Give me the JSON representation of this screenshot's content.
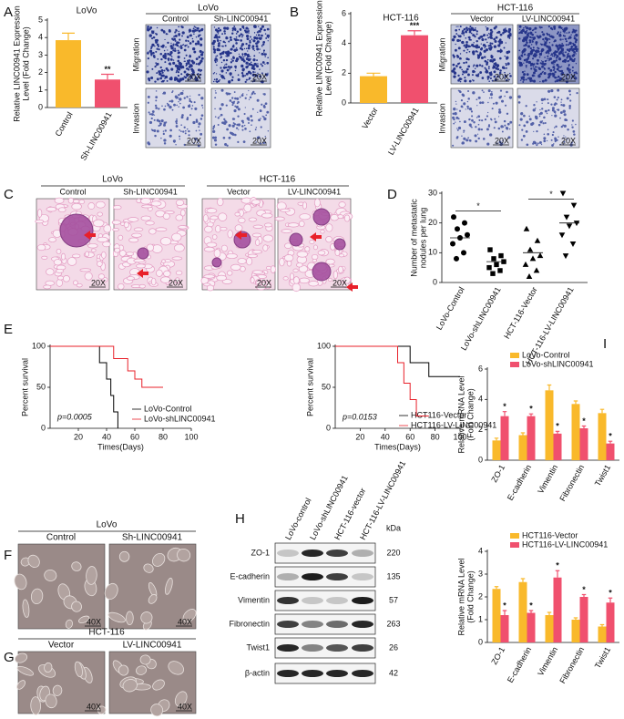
{
  "panels": [
    "A",
    "B",
    "C",
    "D",
    "E",
    "F",
    "G",
    "H",
    "I"
  ],
  "micrographs": {
    "A": {
      "title": "LoVo",
      "columns": [
        "Control",
        "Sh-LINC00941"
      ],
      "rows": [
        "Migration",
        "Invasion"
      ],
      "magnification": "20X"
    },
    "B": {
      "title": "HCT-116",
      "columns": [
        "Vector",
        "LV-LINC00941"
      ],
      "rows": [
        "Migration",
        "Invasion"
      ],
      "magnification": "20X"
    },
    "C": {
      "groups": [
        {
          "title": "LoVo",
          "columns": [
            "Control",
            "Sh-LINC00941"
          ]
        },
        {
          "title": "HCT-116",
          "columns": [
            "Vector",
            "LV-LINC00941"
          ]
        }
      ],
      "magnification": "20X"
    },
    "F": {
      "title": "LoVo",
      "columns": [
        "Control",
        "Sh-LINC00941"
      ],
      "magnification": "40X"
    },
    "G": {
      "title": "HCT-116",
      "columns": [
        "Vector",
        "LV-LINC00941"
      ],
      "magnification": "40X"
    }
  },
  "blot": {
    "lanes": [
      "LoVo-control",
      "LoVo-shLINC00941",
      "HCT-116-vector",
      "HCT-116-LV-LINC00941"
    ],
    "proteins": [
      "ZO-1",
      "E-cadherin",
      "Vimentin",
      "Fibronectin",
      "Twist1",
      "β-actin"
    ],
    "unit": "kDa",
    "kda": [
      220,
      135,
      57,
      263,
      26,
      42
    ]
  },
  "chart_data": [
    {
      "type": "bar",
      "title": "LoVo",
      "ylabel": [
        "Relative LINC00941 Expression",
        "Level (Fold Change)"
      ],
      "categories": [
        "Control",
        "Sh-LINC00941"
      ],
      "values": [
        3.85,
        1.6
      ],
      "errors": [
        0.4,
        0.3
      ],
      "colors": [
        "#f9b92b",
        "#f0506e"
      ],
      "ylim": [
        0,
        5
      ],
      "yticks": [
        0,
        1,
        2,
        3,
        4,
        5
      ],
      "annotations": [
        {
          "index": 1,
          "text": "**"
        }
      ]
    },
    {
      "type": "bar",
      "title": "HCT-116",
      "ylabel": [
        "Relative LINC00941 Expression",
        "Level (Fold Change)"
      ],
      "categories": [
        "Vector",
        "LV-LINC00941"
      ],
      "values": [
        1.8,
        4.55
      ],
      "errors": [
        0.2,
        0.3
      ],
      "colors": [
        "#f9b92b",
        "#f0506e"
      ],
      "ylim": [
        0,
        6
      ],
      "yticks": [
        0,
        2,
        4,
        6
      ],
      "annotations": [
        {
          "index": 1,
          "text": "***"
        }
      ]
    },
    {
      "type": "dot",
      "ylabel": [
        "Number of metastatic",
        "nodules per lung"
      ],
      "categories": [
        "LoVo-Control",
        "LoVo-shLINC00941",
        "HCT-116-Vector",
        "HCT-116-LV-LINC00941"
      ],
      "values": [
        [
          22,
          20,
          18,
          16,
          15,
          13,
          10,
          8
        ],
        [
          11,
          9,
          8,
          7,
          6,
          5,
          4,
          3
        ],
        [
          18,
          14,
          11,
          9,
          8,
          6,
          4,
          2
        ],
        [
          30,
          26,
          22,
          20,
          19,
          16,
          13,
          9
        ]
      ],
      "means": [
        15,
        7,
        10,
        20
      ],
      "markers": [
        "circle",
        "square",
        "triangle",
        "triangle-down"
      ],
      "ylim": [
        0,
        30
      ],
      "yticks": [
        0,
        10,
        20,
        30
      ],
      "significance": [
        {
          "from": 0,
          "to": 1,
          "y": 24,
          "text": "*"
        },
        {
          "from": 2,
          "to": 3,
          "y": 28,
          "text": "*"
        }
      ]
    },
    {
      "type": "survival",
      "xlabel": "Times(Days)",
      "ylabel": "Percent survival",
      "annotation": "p=0.0005",
      "xlim": [
        0,
        100
      ],
      "xticks": [
        20,
        40,
        60,
        80,
        100
      ],
      "ylim": [
        0,
        100
      ],
      "yticks": [
        0,
        50,
        100
      ],
      "series": [
        {
          "name": "LoVo-Control",
          "color": "#000000",
          "x": [
            0,
            35,
            35,
            40,
            40,
            43,
            43,
            45,
            45,
            48,
            48
          ],
          "values": [
            100,
            100,
            80,
            80,
            60,
            60,
            40,
            40,
            20,
            20,
            0
          ]
        },
        {
          "name": "LoVo-shLINC00941",
          "color": "#e8202a",
          "x": [
            0,
            45,
            45,
            55,
            55,
            60,
            60,
            65,
            65,
            80
          ],
          "values": [
            100,
            100,
            85,
            85,
            70,
            70,
            60,
            60,
            50,
            50
          ]
        }
      ]
    },
    {
      "type": "survival",
      "xlabel": "Times(Days)",
      "ylabel": "Percent survival",
      "annotation": "p=0.0153",
      "xlim": [
        0,
        100
      ],
      "xticks": [
        20,
        40,
        60,
        80,
        100
      ],
      "ylim": [
        0,
        100
      ],
      "yticks": [
        0,
        50,
        100
      ],
      "series": [
        {
          "name": "HCT116-Vector",
          "color": "#000000",
          "x": [
            0,
            60,
            60,
            75,
            75,
            100
          ],
          "values": [
            100,
            100,
            80,
            80,
            63,
            63
          ]
        },
        {
          "name": "HCT116-LV-LINC00941",
          "color": "#e8202a",
          "x": [
            0,
            50,
            50,
            55,
            55,
            60,
            60,
            65,
            65,
            75
          ],
          "values": [
            100,
            100,
            80,
            80,
            55,
            55,
            35,
            35,
            15,
            15
          ]
        }
      ]
    },
    {
      "type": "bar",
      "ylabel": [
        "Relative mRNA  Level",
        "(Fold Change)"
      ],
      "categories": [
        "ZO-1",
        "E-cadherin",
        "Vimentin",
        "Fibronectin",
        "Twist1"
      ],
      "series": [
        {
          "name": "LoVo-Control",
          "color": "#f9b92b",
          "values": [
            1.3,
            1.65,
            4.6,
            3.7,
            3.1
          ],
          "errors": [
            0.15,
            0.15,
            0.35,
            0.2,
            0.25
          ]
        },
        {
          "name": "LoVo-shLINC00941",
          "color": "#f0506e",
          "values": [
            2.9,
            2.9,
            1.75,
            2.1,
            1.1
          ],
          "errors": [
            0.3,
            0.15,
            0.15,
            0.15,
            0.15
          ]
        }
      ],
      "ylim": [
        0,
        6
      ],
      "yticks": [
        0,
        2,
        4,
        6
      ],
      "annotations": [
        {
          "series": 1,
          "index": 0,
          "text": "*"
        },
        {
          "series": 1,
          "index": 1,
          "text": "*"
        },
        {
          "series": 1,
          "index": 2,
          "text": "*"
        },
        {
          "series": 1,
          "index": 3,
          "text": "*"
        },
        {
          "series": 1,
          "index": 4,
          "text": "*"
        }
      ]
    },
    {
      "type": "bar",
      "ylabel": [
        "Relative mRNA Level",
        "(Fold Change)"
      ],
      "categories": [
        "ZO-1",
        "E-cadherin",
        "Vimentin",
        "Fibronectin",
        "Twist1"
      ],
      "series": [
        {
          "name": "HCT116-Vector",
          "color": "#f9b92b",
          "values": [
            2.35,
            2.65,
            1.2,
            1.0,
            0.7
          ],
          "errors": [
            0.1,
            0.15,
            0.12,
            0.08,
            0.08
          ]
        },
        {
          "name": "HCT116-LV-LINC00941",
          "color": "#f0506e",
          "values": [
            1.2,
            1.3,
            2.85,
            2.0,
            1.75
          ],
          "errors": [
            0.2,
            0.1,
            0.3,
            0.1,
            0.2
          ]
        }
      ],
      "ylim": [
        0,
        4
      ],
      "yticks": [
        0,
        1,
        2,
        3,
        4
      ],
      "annotations": [
        {
          "series": 1,
          "index": 0,
          "text": "*"
        },
        {
          "series": 1,
          "index": 1,
          "text": "*"
        },
        {
          "series": 1,
          "index": 2,
          "text": "*"
        },
        {
          "series": 1,
          "index": 3,
          "text": "*"
        },
        {
          "series": 1,
          "index": 4,
          "text": "*"
        }
      ]
    }
  ]
}
